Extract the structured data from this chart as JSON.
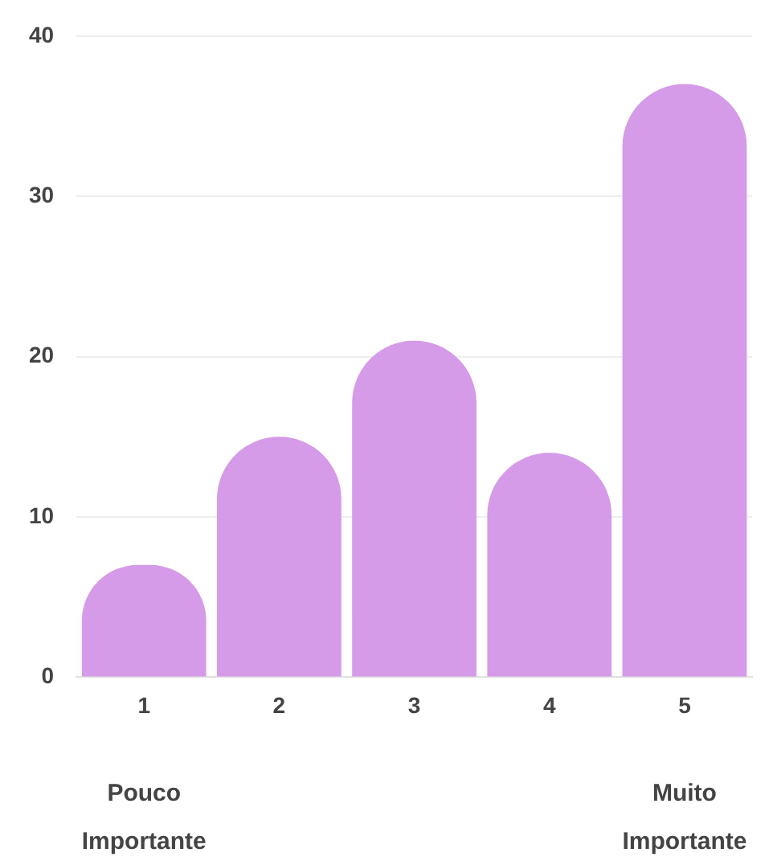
{
  "chart_data": {
    "type": "bar",
    "categories": [
      "1",
      "2",
      "3",
      "4",
      "5"
    ],
    "values": [
      7,
      15,
      21,
      14,
      37
    ],
    "color": "#d59ae8",
    "ylim": [
      0,
      40
    ],
    "yticks": [
      0,
      10,
      20,
      30,
      40
    ],
    "grid": "y",
    "legend": false,
    "annotations": [
      "Pouco Importante",
      "Muito Importante"
    ]
  }
}
